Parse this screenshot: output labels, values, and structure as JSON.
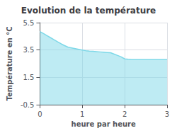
{
  "chart_data": {
    "type": "area",
    "title": "Evolution de la température",
    "xlabel": "heure par heure",
    "ylabel": "Température en °C",
    "x": [
      0,
      0.083,
      0.167,
      0.25,
      0.333,
      0.417,
      0.5,
      0.583,
      0.667,
      0.75,
      0.833,
      0.917,
      1.0,
      1.083,
      1.167,
      1.25,
      1.333,
      1.417,
      1.5,
      1.583,
      1.667,
      1.75,
      1.833,
      1.917,
      2.0,
      2.083,
      2.167,
      2.25,
      2.333,
      2.417,
      2.5,
      2.583,
      2.667,
      2.75,
      2.833,
      2.917,
      3.0
    ],
    "values": [
      4.85,
      4.7,
      4.55,
      4.4,
      4.25,
      4.1,
      3.95,
      3.82,
      3.7,
      3.65,
      3.6,
      3.55,
      3.5,
      3.45,
      3.42,
      3.4,
      3.38,
      3.36,
      3.34,
      3.32,
      3.3,
      3.2,
      3.1,
      3.0,
      2.85,
      2.82,
      2.8,
      2.8,
      2.8,
      2.8,
      2.8,
      2.8,
      2.8,
      2.8,
      2.8,
      2.8,
      2.8
    ],
    "color": "#7dd8e8",
    "xlim": [
      0,
      3
    ],
    "ylim": [
      -0.5,
      5.5
    ],
    "xticks": [
      0,
      1,
      2,
      3
    ],
    "yticks": [
      -0.5,
      1.5,
      3.5,
      5.5
    ],
    "grid": true
  }
}
